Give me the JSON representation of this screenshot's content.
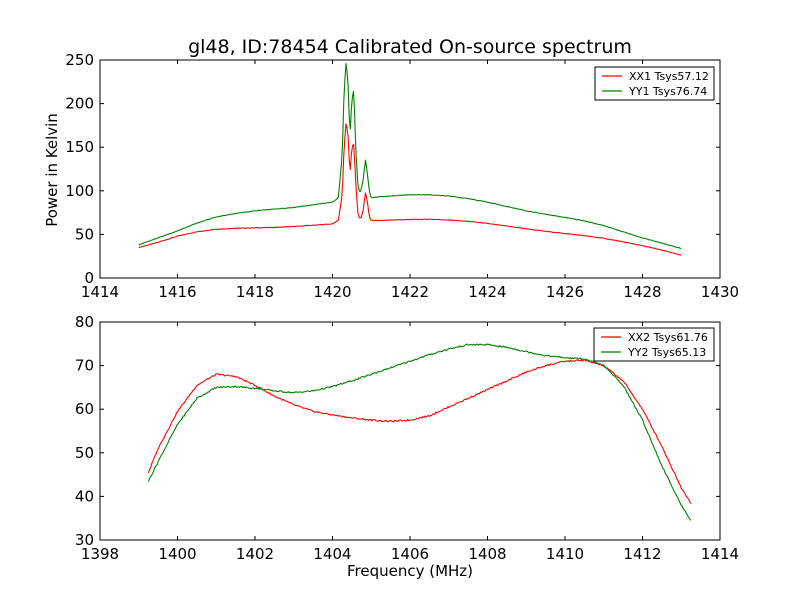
{
  "chart_data": [
    {
      "type": "line",
      "title": "gl48, ID:78454 Calibrated On-source spectrum",
      "xlabel": "",
      "ylabel": "Power in Kelvin",
      "xlim": [
        1414,
        1430
      ],
      "ylim": [
        0,
        250
      ],
      "xticks": [
        1414,
        1416,
        1418,
        1420,
        1422,
        1424,
        1426,
        1428,
        1430
      ],
      "yticks": [
        0,
        50,
        100,
        150,
        200,
        250
      ],
      "grid": false,
      "legend": "top-right",
      "series": [
        {
          "name": "XX1 Tsys57.12",
          "color": "#ff0000",
          "x": [
            1415.0,
            1415.5,
            1416.0,
            1416.5,
            1417.0,
            1417.5,
            1418.0,
            1418.5,
            1419.0,
            1419.5,
            1420.0,
            1420.15,
            1420.25,
            1420.3,
            1420.35,
            1420.4,
            1420.45,
            1420.5,
            1420.55,
            1420.6,
            1420.65,
            1420.7,
            1420.75,
            1420.8,
            1420.85,
            1420.9,
            1420.95,
            1421.0,
            1421.2,
            1421.5,
            1422.0,
            1422.5,
            1423.0,
            1423.5,
            1424.0,
            1424.5,
            1425.0,
            1425.5,
            1426.0,
            1426.5,
            1427.0,
            1427.5,
            1428.0,
            1428.5,
            1429.0
          ],
          "y": [
            35,
            41,
            48,
            53,
            56,
            57,
            57.5,
            58,
            59,
            60.5,
            62,
            66,
            95,
            150,
            178,
            165,
            118,
            150,
            154,
            110,
            75,
            68,
            70,
            80,
            98,
            88,
            70,
            66,
            66,
            66.5,
            67,
            67.5,
            66.5,
            65,
            62.5,
            59.5,
            56.5,
            53.5,
            51,
            48.5,
            45.5,
            41.5,
            37,
            32,
            26
          ]
        },
        {
          "name": "YY1 Tsys76.74",
          "color": "#008000",
          "x": [
            1415.0,
            1415.5,
            1416.0,
            1416.5,
            1417.0,
            1417.5,
            1418.0,
            1418.5,
            1419.0,
            1419.5,
            1420.0,
            1420.15,
            1420.25,
            1420.3,
            1420.35,
            1420.4,
            1420.45,
            1420.5,
            1420.55,
            1420.6,
            1420.65,
            1420.7,
            1420.75,
            1420.8,
            1420.85,
            1420.9,
            1420.95,
            1421.0,
            1421.2,
            1421.5,
            1422.0,
            1422.5,
            1423.0,
            1423.5,
            1424.0,
            1424.5,
            1425.0,
            1425.5,
            1426.0,
            1426.5,
            1427.0,
            1427.5,
            1428.0,
            1428.5,
            1429.0
          ],
          "y": [
            38,
            46,
            54,
            63,
            70,
            74,
            77,
            79,
            81,
            84,
            87,
            92,
            140,
            215,
            247,
            225,
            162,
            205,
            215,
            150,
            108,
            98,
            103,
            115,
            136,
            120,
            100,
            92,
            93,
            94,
            95.5,
            95.5,
            94,
            91,
            87,
            82,
            77,
            73,
            69.5,
            65.5,
            60,
            53,
            46,
            40,
            34
          ]
        }
      ]
    },
    {
      "type": "line",
      "title": "",
      "xlabel": "Frequency (MHz)",
      "ylabel": "",
      "xlim": [
        1398,
        1414
      ],
      "ylim": [
        30,
        80
      ],
      "xticks": [
        1398,
        1400,
        1402,
        1404,
        1406,
        1408,
        1410,
        1412,
        1414
      ],
      "yticks": [
        30,
        40,
        50,
        60,
        70,
        80
      ],
      "grid": false,
      "legend": "top-right",
      "series": [
        {
          "name": "XX2 Tsys61.76",
          "color": "#ff0000",
          "x": [
            1399.25,
            1399.5,
            1400.0,
            1400.5,
            1401.0,
            1401.5,
            1402.0,
            1402.5,
            1403.0,
            1403.5,
            1404.0,
            1404.5,
            1405.0,
            1405.5,
            1406.0,
            1406.5,
            1407.0,
            1407.5,
            1408.0,
            1408.5,
            1409.0,
            1409.5,
            1410.0,
            1410.5,
            1411.0,
            1411.5,
            1412.0,
            1412.5,
            1413.0,
            1413.25
          ],
          "y": [
            45.5,
            51,
            59.5,
            65.5,
            68,
            67.5,
            65.5,
            63,
            61,
            59.5,
            58.7,
            58,
            57.5,
            57.2,
            57.5,
            58.5,
            60.5,
            62.5,
            64.5,
            66.5,
            68.5,
            70,
            71,
            71.2,
            70,
            66.5,
            60,
            51.5,
            42,
            38.5
          ]
        },
        {
          "name": "YY2 Tsys65.13",
          "color": "#008000",
          "x": [
            1399.25,
            1399.5,
            1400.0,
            1400.5,
            1401.0,
            1401.5,
            1402.0,
            1402.5,
            1403.0,
            1403.5,
            1404.0,
            1404.5,
            1405.0,
            1405.5,
            1406.0,
            1406.5,
            1407.0,
            1407.5,
            1408.0,
            1408.5,
            1409.0,
            1409.5,
            1410.0,
            1410.5,
            1411.0,
            1411.5,
            1412.0,
            1412.5,
            1413.0,
            1413.25
          ],
          "y": [
            43.5,
            48,
            56.5,
            62.5,
            65,
            65.2,
            64.8,
            64.2,
            63.8,
            64.2,
            65.2,
            66.5,
            68,
            69.5,
            71,
            72.5,
            73.8,
            74.8,
            74.8,
            74.2,
            73.2,
            72.3,
            71.8,
            71.5,
            70,
            65.5,
            57.5,
            47,
            38,
            34.5
          ]
        }
      ]
    }
  ]
}
